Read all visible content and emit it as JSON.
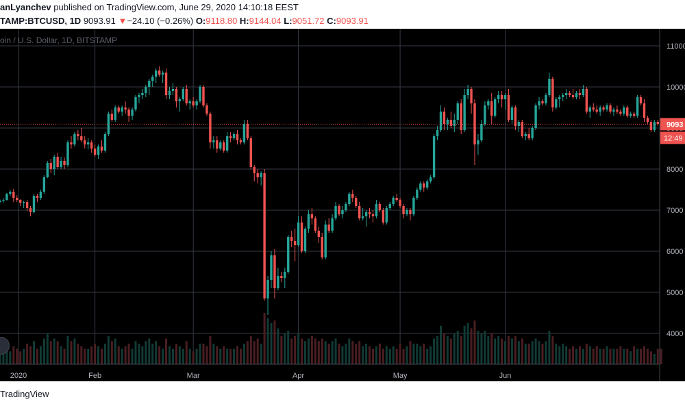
{
  "header": {
    "publisher": "anLyanchev",
    "published_text": "published on TradingView.com, June 29, 2020 14:10:18 EEST"
  },
  "ohlc": {
    "symbol": "TAMP:BTCUSD, 1D",
    "last": "9093.91",
    "arrow": "▼",
    "change": "−24.10 (−0.26%)",
    "o_label": "O:",
    "o": "9118.80",
    "h_label": "H:",
    "h": "9144.04",
    "l_label": "L:",
    "l": "9051.72",
    "c_label": "C:",
    "c": "9093.91"
  },
  "watermark": "oin / U.S. Dollar, 1D, BITSTAMP",
  "price_badge": "9093",
  "countdown_badge": "12:49",
  "footer": {
    "brand": "TradingView"
  },
  "colors": {
    "up": "#26a69a",
    "down": "#ef5350",
    "grid": "#363a45",
    "bg": "#000000",
    "price_line": "#ef5350"
  },
  "chart_data": {
    "type": "candlestick",
    "x_tick_labels": [
      "2020",
      "Feb",
      "Mar",
      "Apr",
      "May",
      "Jun"
    ],
    "y_tick_labels": [
      "11000",
      "10000",
      "9000",
      "8000",
      "7000",
      "6000",
      "5000",
      "4000"
    ],
    "ylim": [
      3250,
      11250
    ],
    "grid": true,
    "last_price": 9093.91,
    "candles_ohlc": [
      [
        7200,
        7260,
        7180,
        7230
      ],
      [
        7230,
        7300,
        7180,
        7250
      ],
      [
        7250,
        7420,
        7230,
        7400
      ],
      [
        7400,
        7480,
        7350,
        7450
      ],
      [
        7450,
        7520,
        7200,
        7300
      ],
      [
        7300,
        7360,
        7200,
        7250
      ],
      [
        7250,
        7270,
        7100,
        7180
      ],
      [
        7180,
        7230,
        7050,
        7200
      ],
      [
        7200,
        7250,
        6980,
        7050
      ],
      [
        7050,
        7100,
        6850,
        6950
      ],
      [
        6950,
        7400,
        6920,
        7350
      ],
      [
        7350,
        7400,
        7200,
        7300
      ],
      [
        7300,
        7500,
        7250,
        7450
      ],
      [
        7450,
        7850,
        7400,
        7800
      ],
      [
        7800,
        8200,
        7780,
        8150
      ],
      [
        8150,
        8250,
        7900,
        8000
      ],
      [
        8000,
        8350,
        7850,
        8300
      ],
      [
        8300,
        8400,
        8000,
        8050
      ],
      [
        8050,
        8300,
        8000,
        8200
      ],
      [
        8200,
        8280,
        8000,
        8100
      ],
      [
        8100,
        8700,
        8050,
        8650
      ],
      [
        8650,
        8800,
        8500,
        8600
      ],
      [
        8600,
        8900,
        8550,
        8850
      ],
      [
        8850,
        8950,
        8700,
        8800
      ],
      [
        8800,
        9000,
        8650,
        8700
      ],
      [
        8700,
        8800,
        8500,
        8600
      ],
      [
        8600,
        8750,
        8480,
        8650
      ],
      [
        8650,
        8700,
        8400,
        8500
      ],
      [
        8500,
        8600,
        8300,
        8350
      ],
      [
        8350,
        8600,
        8250,
        8550
      ],
      [
        8550,
        8700,
        8400,
        8450
      ],
      [
        8450,
        8900,
        8400,
        8850
      ],
      [
        8850,
        9400,
        8800,
        9350
      ],
      [
        9350,
        9450,
        9150,
        9200
      ],
      [
        9200,
        9550,
        9150,
        9500
      ],
      [
        9500,
        9550,
        9350,
        9400
      ],
      [
        9400,
        9550,
        9300,
        9500
      ],
      [
        9500,
        9650,
        9350,
        9450
      ],
      [
        9450,
        9500,
        9150,
        9300
      ],
      [
        9300,
        9500,
        9200,
        9450
      ],
      [
        9450,
        9800,
        9400,
        9750
      ],
      [
        9750,
        9850,
        9600,
        9800
      ],
      [
        9800,
        9950,
        9700,
        9850
      ],
      [
        9850,
        10050,
        9750,
        10000
      ],
      [
        10000,
        10200,
        9800,
        10150
      ],
      [
        10150,
        10300,
        10000,
        10250
      ],
      [
        10250,
        10450,
        10100,
        10400
      ],
      [
        10400,
        10500,
        10250,
        10300
      ],
      [
        10300,
        10400,
        10100,
        10350
      ],
      [
        10350,
        10450,
        9700,
        9800
      ],
      [
        9800,
        10000,
        9700,
        9900
      ],
      [
        9900,
        10100,
        9800,
        9950
      ],
      [
        9950,
        10000,
        9500,
        9650
      ],
      [
        9650,
        9750,
        9400,
        9700
      ],
      [
        9700,
        10000,
        9650,
        9950
      ],
      [
        9950,
        10050,
        9550,
        9600
      ],
      [
        9600,
        9700,
        9450,
        9650
      ],
      [
        9650,
        9750,
        9500,
        9550
      ],
      [
        9550,
        9700,
        9450,
        9650
      ],
      [
        9650,
        10050,
        9600,
        10000
      ],
      [
        10000,
        10050,
        9500,
        9550
      ],
      [
        9550,
        9600,
        9300,
        9350
      ],
      [
        9350,
        9400,
        8500,
        8650
      ],
      [
        8650,
        8800,
        8500,
        8700
      ],
      [
        8700,
        8800,
        8400,
        8500
      ],
      [
        8500,
        8700,
        8450,
        8650
      ],
      [
        8650,
        8700,
        8400,
        8450
      ],
      [
        8450,
        8900,
        8400,
        8800
      ],
      [
        8800,
        8900,
        8650,
        8750
      ],
      [
        8750,
        8900,
        8700,
        8850
      ],
      [
        8850,
        8950,
        8600,
        8700
      ],
      [
        8700,
        8750,
        8600,
        8650
      ],
      [
        8650,
        9200,
        8600,
        9100
      ],
      [
        9100,
        9200,
        8700,
        8750
      ],
      [
        8750,
        8800,
        8000,
        8050
      ],
      [
        8050,
        8100,
        7700,
        7900
      ],
      [
        7900,
        8000,
        7650,
        7800
      ],
      [
        7800,
        7950,
        7600,
        7900
      ],
      [
        7900,
        8000,
        4800,
        4850
      ],
      [
        4850,
        5400,
        4450,
        5300
      ],
      [
        5300,
        6000,
        5100,
        5900
      ],
      [
        5900,
        6050,
        4850,
        5100
      ],
      [
        5100,
        5600,
        5050,
        5400
      ],
      [
        5400,
        5500,
        5250,
        5350
      ],
      [
        5350,
        5600,
        5100,
        5500
      ],
      [
        5500,
        6400,
        5450,
        6350
      ],
      [
        6350,
        6500,
        6100,
        6250
      ],
      [
        6250,
        6550,
        5750,
        6150
      ],
      [
        6150,
        6850,
        6100,
        6700
      ],
      [
        6700,
        6850,
        5950,
        6000
      ],
      [
        6000,
        6600,
        5950,
        6550
      ],
      [
        6550,
        7000,
        6450,
        6900
      ],
      [
        6900,
        7050,
        6650,
        6800
      ],
      [
        6800,
        6850,
        6450,
        6500
      ],
      [
        6500,
        6600,
        6200,
        6350
      ],
      [
        6350,
        6450,
        5800,
        5850
      ],
      [
        5850,
        6750,
        5800,
        6650
      ],
      [
        6650,
        6800,
        6450,
        6500
      ],
      [
        6500,
        6900,
        6450,
        6800
      ],
      [
        6800,
        7200,
        6750,
        7100
      ],
      [
        7100,
        7150,
        6850,
        6900
      ],
      [
        6900,
        7100,
        6800,
        7000
      ],
      [
        7000,
        7200,
        6950,
        7150
      ],
      [
        7150,
        7450,
        7100,
        7400
      ],
      [
        7400,
        7500,
        7200,
        7300
      ],
      [
        7300,
        7350,
        7050,
        7100
      ],
      [
        7100,
        7200,
        6750,
        6800
      ],
      [
        6800,
        7050,
        6750,
        6850
      ],
      [
        6850,
        7000,
        6600,
        6950
      ],
      [
        6950,
        7050,
        6800,
        6900
      ],
      [
        6900,
        7000,
        6700,
        6850
      ],
      [
        6850,
        7250,
        6800,
        7150
      ],
      [
        7150,
        7200,
        6950,
        7000
      ],
      [
        7000,
        7050,
        6650,
        6700
      ],
      [
        6700,
        7100,
        6650,
        7050
      ],
      [
        7050,
        7200,
        7000,
        7150
      ],
      [
        7150,
        7350,
        7100,
        7300
      ],
      [
        7300,
        7400,
        7200,
        7250
      ],
      [
        7250,
        7300,
        7050,
        7100
      ],
      [
        7100,
        7150,
        6800,
        6900
      ],
      [
        6900,
        7050,
        6850,
        7000
      ],
      [
        7000,
        7050,
        6750,
        6900
      ],
      [
        6900,
        7350,
        6850,
        7300
      ],
      [
        7300,
        7550,
        7250,
        7500
      ],
      [
        7500,
        7700,
        7450,
        7650
      ],
      [
        7650,
        7700,
        7450,
        7550
      ],
      [
        7550,
        7750,
        7500,
        7700
      ],
      [
        7700,
        7850,
        7650,
        7800
      ],
      [
        7800,
        8850,
        7750,
        8800
      ],
      [
        8800,
        9050,
        8700,
        8950
      ],
      [
        8950,
        9550,
        8900,
        9400
      ],
      [
        9400,
        9500,
        8950,
        9100
      ],
      [
        9100,
        9250,
        8950,
        9200
      ],
      [
        9200,
        9400,
        9000,
        9050
      ],
      [
        9050,
        9350,
        8900,
        9200
      ],
      [
        9200,
        9650,
        9100,
        9600
      ],
      [
        9600,
        9700,
        8850,
        8950
      ],
      [
        8950,
        9950,
        8900,
        9800
      ],
      [
        9800,
        10050,
        9700,
        9950
      ],
      [
        9950,
        10000,
        9350,
        9600
      ],
      [
        9600,
        9700,
        8100,
        8600
      ],
      [
        8600,
        8850,
        8350,
        8700
      ],
      [
        8700,
        9200,
        8650,
        9100
      ],
      [
        9100,
        9650,
        9050,
        9550
      ],
      [
        9550,
        9700,
        9450,
        9650
      ],
      [
        9650,
        9850,
        9100,
        9300
      ],
      [
        9300,
        9750,
        9250,
        9700
      ],
      [
        9700,
        9900,
        9600,
        9800
      ],
      [
        9800,
        9900,
        9500,
        9700
      ],
      [
        9700,
        9850,
        9450,
        9800
      ],
      [
        9800,
        9950,
        9150,
        9200
      ],
      [
        9200,
        9550,
        9100,
        9500
      ],
      [
        9500,
        9550,
        8950,
        9050
      ],
      [
        9050,
        9200,
        8900,
        9150
      ],
      [
        9150,
        9200,
        8750,
        8800
      ],
      [
        8800,
        8900,
        8700,
        8850
      ],
      [
        8850,
        9000,
        8700,
        8750
      ],
      [
        8750,
        9050,
        8700,
        9000
      ],
      [
        9000,
        9600,
        8950,
        9550
      ],
      [
        9550,
        9750,
        9450,
        9650
      ],
      [
        9650,
        9700,
        9550,
        9600
      ],
      [
        9600,
        9850,
        9550,
        9800
      ],
      [
        9800,
        10350,
        9750,
        10200
      ],
      [
        10200,
        10250,
        9400,
        9500
      ],
      [
        9500,
        9750,
        9450,
        9700
      ],
      [
        9700,
        9800,
        9500,
        9750
      ],
      [
        9750,
        9850,
        9650,
        9800
      ],
      [
        9800,
        9950,
        9700,
        9850
      ],
      [
        9850,
        9900,
        9750,
        9800
      ],
      [
        9800,
        9950,
        9700,
        9750
      ],
      [
        9750,
        9900,
        9700,
        9850
      ],
      [
        9850,
        9950,
        9700,
        9800
      ],
      [
        9800,
        10050,
        9750,
        9950
      ],
      [
        9950,
        10000,
        9350,
        9400
      ],
      [
        9400,
        9550,
        9250,
        9500
      ],
      [
        9500,
        9600,
        9400,
        9450
      ],
      [
        9450,
        9550,
        9350,
        9400
      ],
      [
        9400,
        9550,
        9300,
        9500
      ],
      [
        9500,
        9550,
        9400,
        9450
      ],
      [
        9450,
        9600,
        9400,
        9550
      ],
      [
        9550,
        9600,
        9350,
        9400
      ],
      [
        9400,
        9500,
        9300,
        9450
      ],
      [
        9450,
        9550,
        9350,
        9400
      ],
      [
        9400,
        9450,
        9300,
        9350
      ],
      [
        9350,
        9550,
        9300,
        9500
      ],
      [
        9500,
        9550,
        9250,
        9300
      ],
      [
        9300,
        9400,
        9250,
        9350
      ],
      [
        9350,
        9400,
        9250,
        9300
      ],
      [
        9300,
        9800,
        9250,
        9750
      ],
      [
        9750,
        9800,
        9550,
        9600
      ],
      [
        9600,
        9700,
        9150,
        9250
      ],
      [
        9250,
        9300,
        9100,
        9150
      ],
      [
        9150,
        9200,
        8900,
        8950
      ],
      [
        8950,
        9200,
        8900,
        9150
      ],
      [
        9150,
        9200,
        9050,
        9100
      ],
      [
        9100,
        9150,
        9050,
        9094
      ]
    ],
    "volume_relative": [
      0.3,
      0.25,
      0.3,
      0.25,
      0.35,
      0.3,
      0.25,
      0.3,
      0.4,
      0.35,
      0.45,
      0.3,
      0.35,
      0.5,
      0.6,
      0.45,
      0.5,
      0.45,
      0.35,
      0.3,
      0.55,
      0.45,
      0.5,
      0.4,
      0.35,
      0.3,
      0.3,
      0.35,
      0.4,
      0.35,
      0.3,
      0.4,
      0.55,
      0.45,
      0.5,
      0.35,
      0.3,
      0.35,
      0.4,
      0.3,
      0.45,
      0.4,
      0.35,
      0.45,
      0.5,
      0.4,
      0.45,
      0.35,
      0.3,
      0.5,
      0.35,
      0.3,
      0.4,
      0.35,
      0.3,
      0.45,
      0.3,
      0.25,
      0.3,
      0.4,
      0.4,
      0.35,
      0.55,
      0.4,
      0.35,
      0.3,
      0.35,
      0.3,
      0.3,
      0.3,
      0.35,
      0.3,
      0.4,
      0.45,
      0.55,
      0.45,
      0.5,
      0.4,
      1.0,
      0.9,
      0.8,
      0.85,
      0.7,
      0.55,
      0.6,
      0.65,
      0.5,
      0.55,
      0.6,
      0.5,
      0.45,
      0.5,
      0.55,
      0.5,
      0.45,
      0.5,
      0.45,
      0.4,
      0.45,
      0.5,
      0.4,
      0.35,
      0.4,
      0.5,
      0.45,
      0.4,
      0.45,
      0.35,
      0.4,
      0.35,
      0.3,
      0.35,
      0.4,
      0.3,
      0.35,
      0.3,
      0.35,
      0.3,
      0.4,
      0.3,
      0.35,
      0.45,
      0.4,
      0.4,
      0.35,
      0.4,
      0.3,
      0.35,
      0.5,
      0.55,
      0.75,
      0.6,
      0.55,
      0.5,
      0.6,
      0.65,
      0.55,
      0.75,
      0.8,
      0.7,
      0.85,
      0.65,
      0.6,
      0.65,
      0.55,
      0.6,
      0.5,
      0.55,
      0.5,
      0.45,
      0.55,
      0.5,
      0.55,
      0.45,
      0.5,
      0.4,
      0.4,
      0.45,
      0.5,
      0.45,
      0.4,
      0.45,
      0.65,
      0.55,
      0.4,
      0.35,
      0.4,
      0.35,
      0.3,
      0.35,
      0.3,
      0.35,
      0.3,
      0.4,
      0.35,
      0.3,
      0.35,
      0.3,
      0.3,
      0.35,
      0.3,
      0.3,
      0.3,
      0.35,
      0.3,
      0.3,
      0.25,
      0.35,
      0.3,
      0.3,
      0.35,
      0.3,
      0.25,
      0.2
    ]
  }
}
